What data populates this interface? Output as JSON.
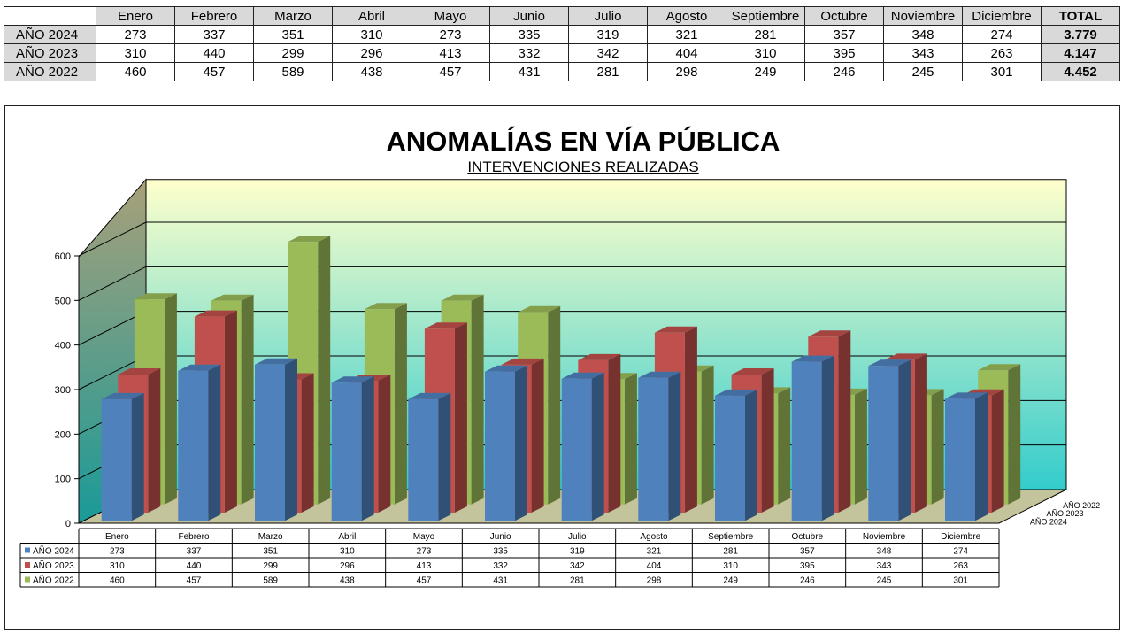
{
  "table": {
    "headers": [
      "Enero",
      "Febrero",
      "Marzo",
      "Abril",
      "Mayo",
      "Junio",
      "Julio",
      "Agosto",
      "Septiembre",
      "Octubre",
      "Noviembre",
      "Diciembre"
    ],
    "total_header": "TOTAL",
    "rows": [
      {
        "label": "AÑO 2024",
        "values": [
          273,
          337,
          351,
          310,
          273,
          335,
          319,
          321,
          281,
          357,
          348,
          274
        ],
        "total": "3.779"
      },
      {
        "label": "AÑO 2023",
        "values": [
          310,
          440,
          299,
          296,
          413,
          332,
          342,
          404,
          310,
          395,
          343,
          263
        ],
        "total": "4.147"
      },
      {
        "label": "AÑO 2022",
        "values": [
          460,
          457,
          589,
          438,
          457,
          431,
          281,
          298,
          249,
          246,
          245,
          301
        ],
        "total": "4.452"
      }
    ]
  },
  "chart_data": {
    "type": "bar",
    "title": "ANOMALÍAS EN VÍA PÚBLICA",
    "subtitle": "INTERVENCIONES REALIZADAS",
    "categories": [
      "Enero",
      "Febrero",
      "Marzo",
      "Abril",
      "Mayo",
      "Junio",
      "Julio",
      "Agosto",
      "Septiembre",
      "Octubre",
      "Noviembre",
      "Diciembre"
    ],
    "series": [
      {
        "name": "AÑO 2024",
        "values": [
          273,
          337,
          351,
          310,
          273,
          335,
          319,
          321,
          281,
          357,
          348,
          274
        ],
        "color": "#4f81bd"
      },
      {
        "name": "AÑO 2023",
        "values": [
          310,
          440,
          299,
          296,
          413,
          332,
          342,
          404,
          310,
          395,
          343,
          263
        ],
        "color": "#c0504d"
      },
      {
        "name": "AÑO 2022",
        "values": [
          460,
          457,
          589,
          438,
          457,
          431,
          281,
          298,
          249,
          246,
          245,
          301
        ],
        "color": "#9bbb59"
      }
    ],
    "yticks": [
      0,
      100,
      200,
      300,
      400,
      500,
      600
    ],
    "ylim": [
      0,
      600
    ],
    "grid": true,
    "three_d": true,
    "data_table": true,
    "colors": {
      "back_wall_top": "#ffffcc",
      "back_wall_bottom": "#33cccc",
      "side_wall_top": "#a8a07a",
      "side_wall_bottom": "#1a9a98",
      "floor": "#c4c49c"
    }
  }
}
